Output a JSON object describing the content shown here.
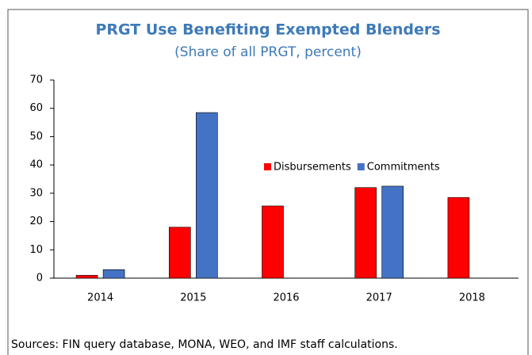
{
  "chart_data": {
    "type": "bar",
    "title": "PRGT Use Benefiting Exempted Blenders",
    "subtitle": "(Share of all PRGT, percent)",
    "categories": [
      "2014",
      "2015",
      "2016",
      "2017",
      "2018"
    ],
    "series": [
      {
        "name": "Disbursements",
        "color": "#ff0000",
        "values": [
          1,
          18,
          25.5,
          32,
          28.5
        ]
      },
      {
        "name": "Commitments",
        "color": "#4472c4",
        "values": [
          3,
          58.5,
          null,
          32.5,
          null
        ]
      }
    ],
    "ylim": [
      0,
      70
    ],
    "yticks": [
      0,
      10,
      20,
      30,
      40,
      50,
      60,
      70
    ],
    "grid": false,
    "note": "Sources: FIN query database, MONA, WEO, and IMF staff calculations."
  }
}
